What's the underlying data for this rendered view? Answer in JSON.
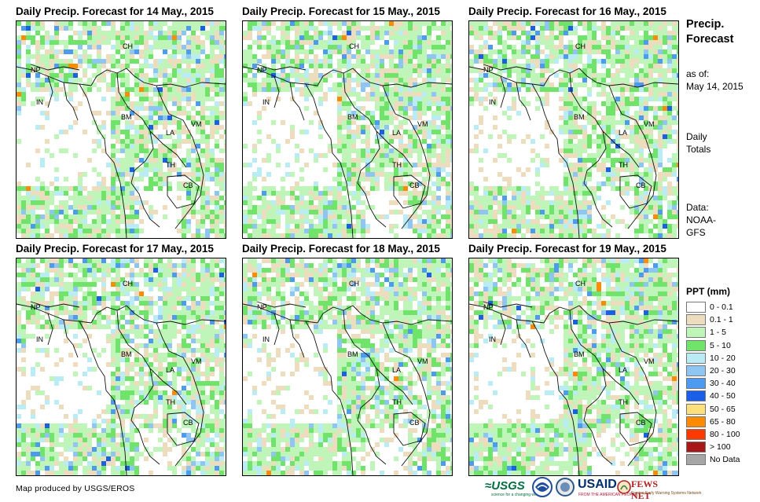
{
  "panels": [
    {
      "title": "Daily Precip. Forecast for 14 May., 2015"
    },
    {
      "title": "Daily Precip. Forecast for 15 May., 2015"
    },
    {
      "title": "Daily Precip. Forecast for 16 May., 2015"
    },
    {
      "title": "Daily Precip. Forecast for 17 May., 2015"
    },
    {
      "title": "Daily Precip. Forecast for 18 May., 2015"
    },
    {
      "title": "Daily Precip. Forecast for 19 May., 2015"
    }
  ],
  "map_labels": {
    "ch": "CH",
    "np": "NP",
    "in": "IN",
    "bm": "BM",
    "la": "LA",
    "vm": "VM",
    "th": "TH",
    "cb": "CB"
  },
  "sidebar": {
    "title_line1": "Precip.",
    "title_line2": "Forecast",
    "asof_label": "as of:",
    "asof_date": "May 14, 2015",
    "totals_line1": "Daily",
    "totals_line2": "Totals",
    "data_label": "Data:",
    "data_source1": "NOAA-",
    "data_source2": "GFS"
  },
  "legend": {
    "title": "PPT (mm)",
    "items": [
      {
        "label": "0 - 0.1",
        "color": "#ffffff"
      },
      {
        "label": "0.1 - 1",
        "color": "#eddcbe"
      },
      {
        "label": "1 - 5",
        "color": "#bff5b8"
      },
      {
        "label": "5 - 10",
        "color": "#6fe36a"
      },
      {
        "label": "10 - 20",
        "color": "#b9ecf5"
      },
      {
        "label": "20 - 30",
        "color": "#8fc5f3"
      },
      {
        "label": "30 - 40",
        "color": "#4d9bf0"
      },
      {
        "label": "40 - 50",
        "color": "#1a5fe6"
      },
      {
        "label": "50 - 65",
        "color": "#ffe07a"
      },
      {
        "label": "65 - 80",
        "color": "#ff8c00"
      },
      {
        "label": "80 - 100",
        "color": "#ff3a00"
      },
      {
        "label": "> 100",
        "color": "#a81818"
      },
      {
        "label": "No Data",
        "color": "#a6a6a6"
      }
    ]
  },
  "footer": {
    "credit": "Map produced by USGS/EROS"
  },
  "logos": {
    "usgs": "≈USGS",
    "usgs_tag": "science for a changing world",
    "usaid": "USAID",
    "usaid_tag": "FROM THE AMERICAN PEOPLE",
    "fews": "FEWS NET",
    "fews_tag": "Famine Early Warning Systems Network"
  }
}
